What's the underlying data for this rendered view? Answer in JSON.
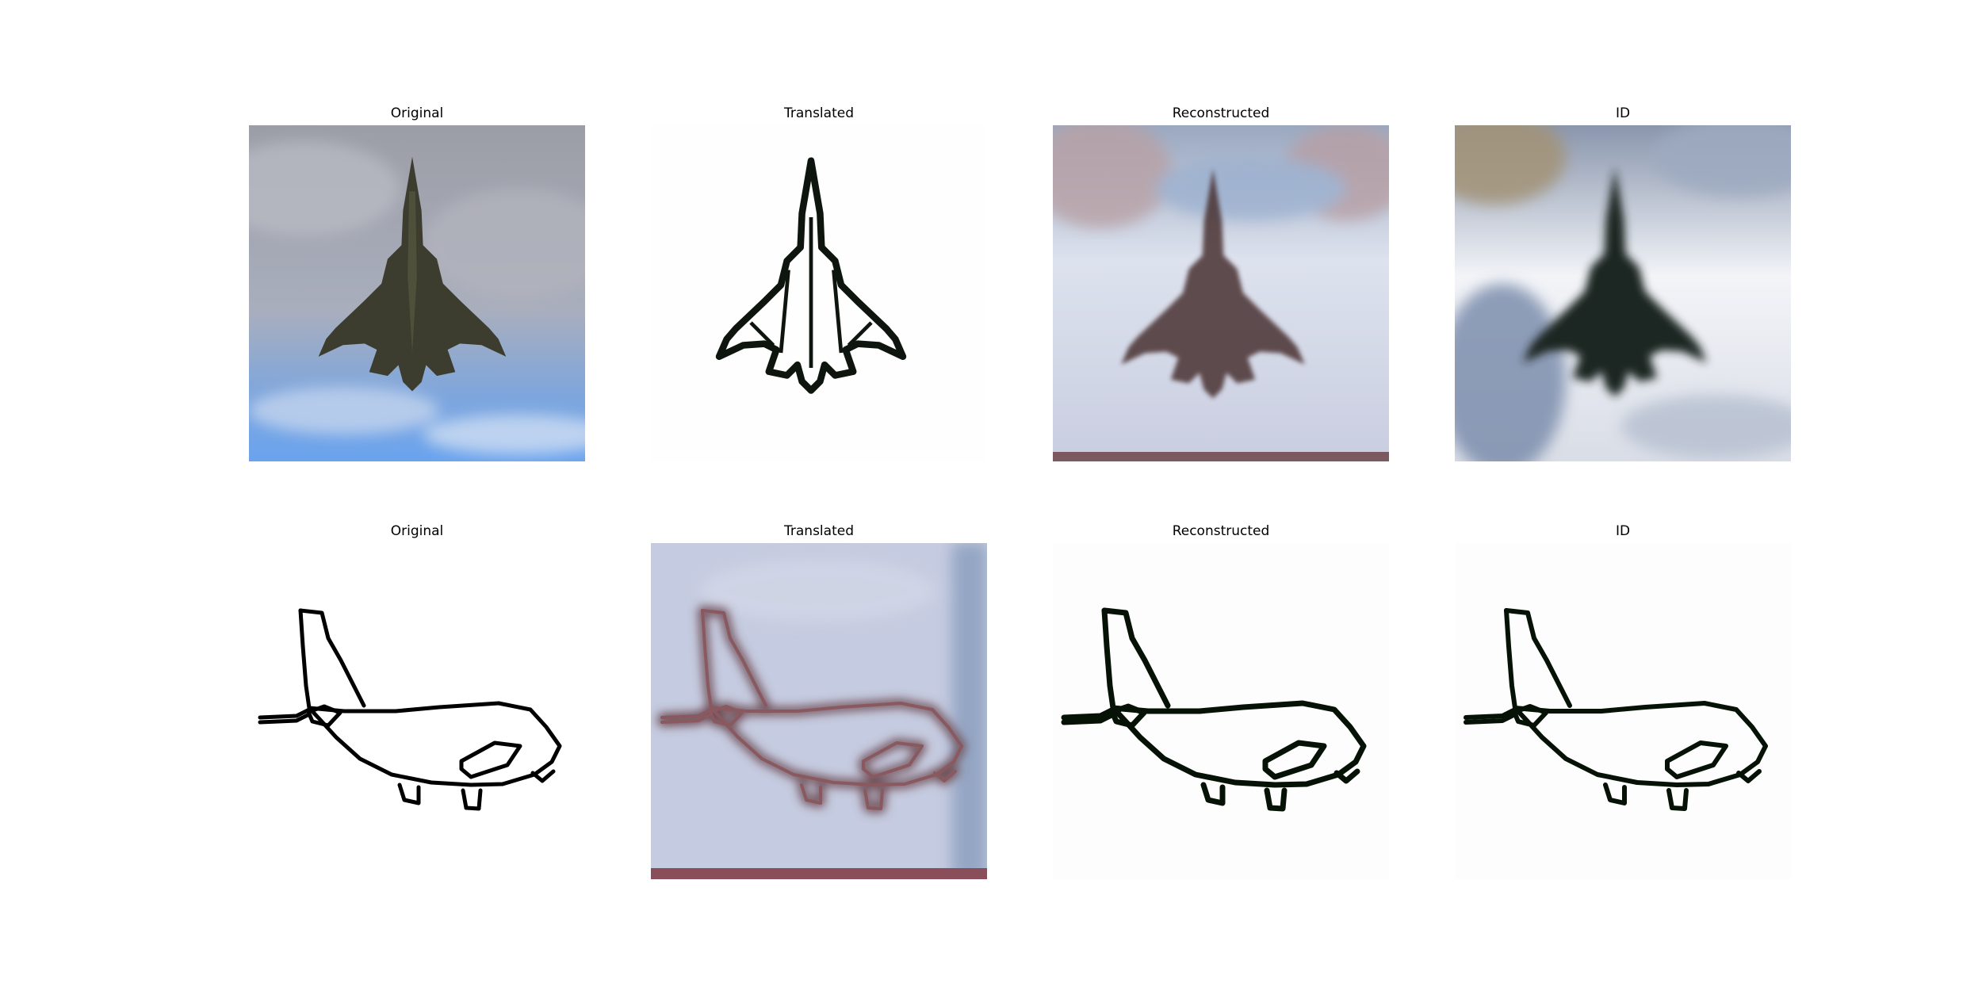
{
  "rows": [
    {
      "panels": [
        {
          "title": "Original",
          "content": "photo of a fighter jet seen from below against a cloudy sky"
        },
        {
          "title": "Translated",
          "content": "black and white edge sketch of the fighter jet"
        },
        {
          "title": "Reconstructed",
          "content": "blurry reconstructed photo of the fighter jet"
        },
        {
          "title": "ID",
          "content": "blurry identity-mapped photo of the fighter jet"
        }
      ]
    },
    {
      "panels": [
        {
          "title": "Original",
          "content": "black line sketch of a passenger airplane"
        },
        {
          "title": "Translated",
          "content": "blurry photo-style rendering of the airplane sketch"
        },
        {
          "title": "Reconstructed",
          "content": "reconstructed line sketch of the airplane"
        },
        {
          "title": "ID",
          "content": "identity-mapped line sketch of the airplane"
        }
      ]
    }
  ],
  "colors": {
    "background": "#ffffff",
    "title_text": "#000000"
  }
}
